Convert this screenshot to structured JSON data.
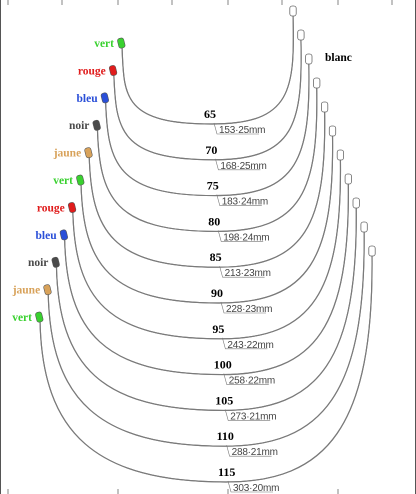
{
  "blanc_label": "blanc",
  "wires": [
    {
      "size": "65",
      "length": "153·25mm",
      "color_label": "vert",
      "color": "#39d12f"
    },
    {
      "size": "70",
      "length": "168·25mm",
      "color_label": "rouge",
      "color": "#e01c1c"
    },
    {
      "size": "75",
      "length": "183·24mm",
      "color_label": "bleu",
      "color": "#2a4fd8"
    },
    {
      "size": "80",
      "length": "198·24mm",
      "color_label": "noir",
      "color": "#4a4a4a"
    },
    {
      "size": "85",
      "length": "213·23mm",
      "color_label": "jaune",
      "color": "#d8a25a"
    },
    {
      "size": "90",
      "length": "228·23mm",
      "color_label": "vert",
      "color": "#39d12f"
    },
    {
      "size": "95",
      "length": "243·22mm",
      "color_label": "rouge",
      "color": "#e01c1c"
    },
    {
      "size": "100",
      "length": "258·22mm",
      "color_label": "bleu",
      "color": "#2a4fd8"
    },
    {
      "size": "105",
      "length": "273·21mm",
      "color_label": "noir",
      "color": "#4a4a4a"
    },
    {
      "size": "110",
      "length": "288·21mm",
      "color_label": "jaune",
      "color": "#d8a25a"
    },
    {
      "size": "115",
      "length": "303·20mm",
      "color_label": "vert",
      "color": "#39d12f"
    }
  ]
}
